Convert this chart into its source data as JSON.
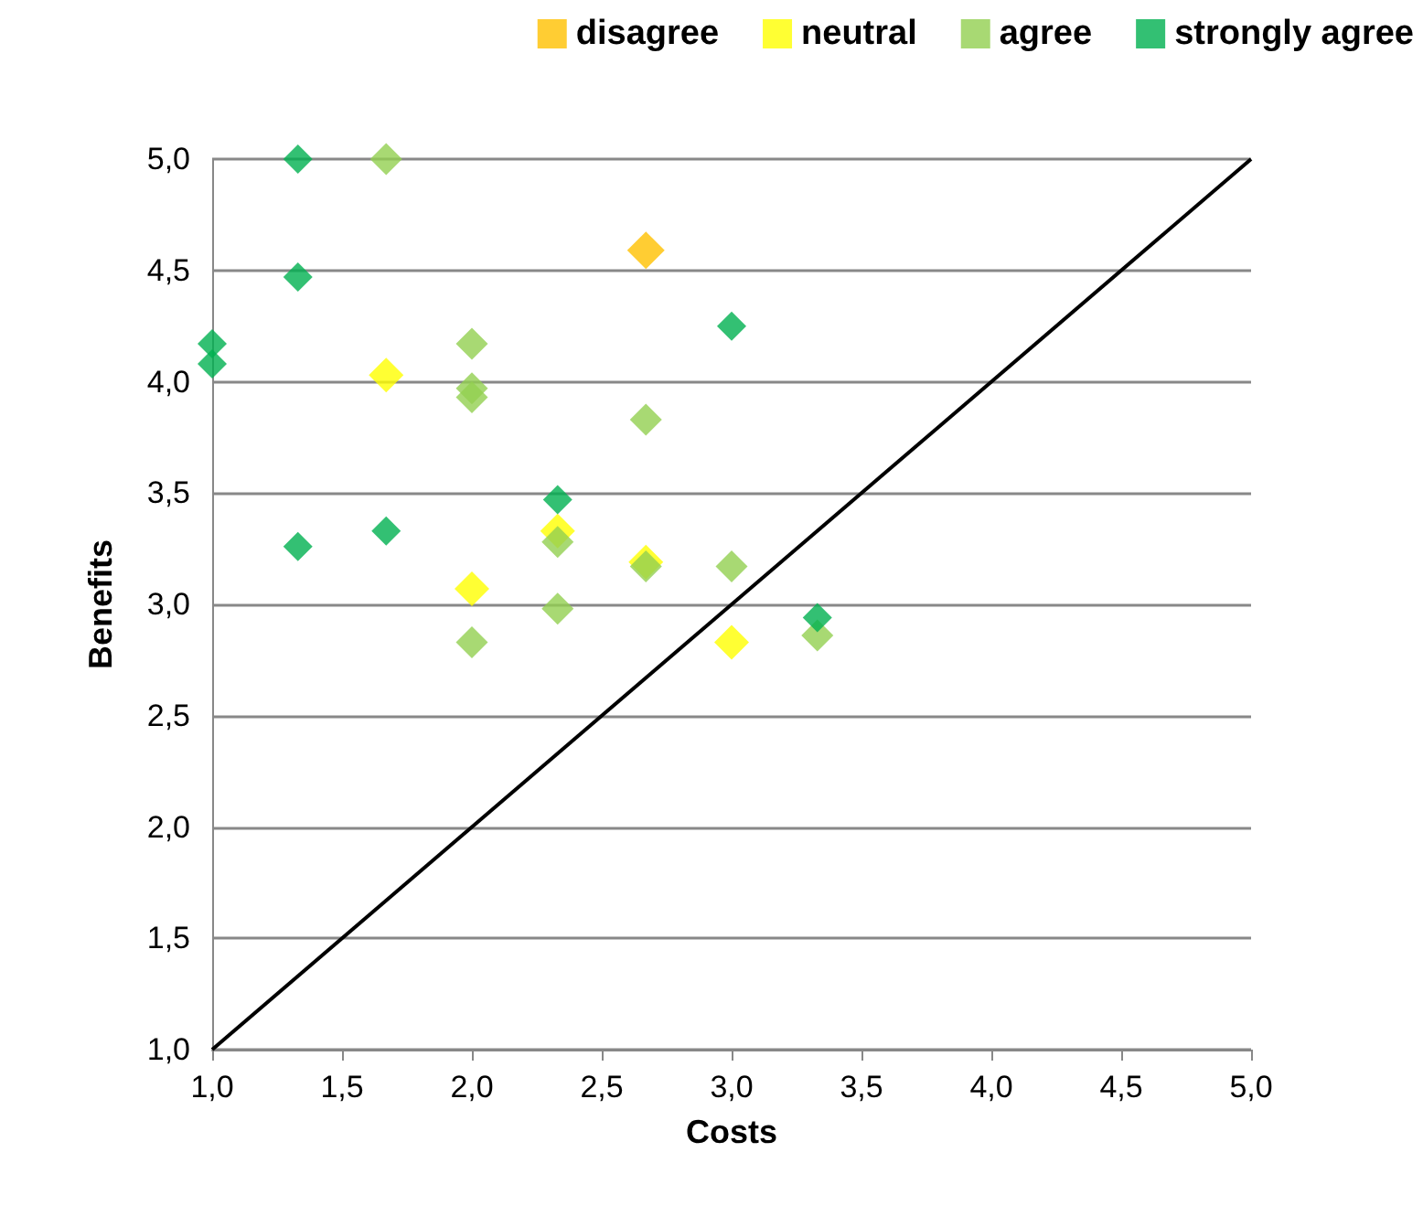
{
  "chart_data": {
    "type": "scatter",
    "xlabel": "Costs",
    "ylabel": "Benefits",
    "xlim": [
      1,
      5
    ],
    "ylim": [
      1,
      5
    ],
    "xticks": [
      {
        "value": 1,
        "label": "1,0"
      },
      {
        "value": 1.5,
        "label": "1,5"
      },
      {
        "value": 2,
        "label": "2,0"
      },
      {
        "value": 2.5,
        "label": "2,5"
      },
      {
        "value": 3,
        "label": "3,0"
      },
      {
        "value": 3.5,
        "label": "3,5"
      },
      {
        "value": 4,
        "label": "4,0"
      },
      {
        "value": 4.5,
        "label": "4,5"
      },
      {
        "value": 5,
        "label": "5,0"
      }
    ],
    "yticks": [
      {
        "value": 1,
        "label": "1,0"
      },
      {
        "value": 1.5,
        "label": "1,5"
      },
      {
        "value": 2,
        "label": "2,0"
      },
      {
        "value": 2.5,
        "label": "2,5"
      },
      {
        "value": 3,
        "label": "3,0"
      },
      {
        "value": 3.5,
        "label": "3,5"
      },
      {
        "value": 4,
        "label": "4,0"
      },
      {
        "value": 4.5,
        "label": "4,5"
      },
      {
        "value": 5,
        "label": "5,0"
      }
    ],
    "grid": "y",
    "legend": "top",
    "marker": "diamond",
    "series": [
      {
        "type": "line",
        "color": "#000000",
        "marker": "none",
        "x": [
          1,
          5
        ],
        "values": [
          1,
          5
        ]
      },
      {
        "name": "disagree",
        "color": "#ffc000",
        "x": [
          2.67
        ],
        "values": [
          4.59
        ]
      },
      {
        "name": "neutral",
        "color": "#ffff00",
        "x": [
          1.67,
          2,
          2.33,
          2.67,
          3
        ],
        "values": [
          4.03,
          3.07,
          3.33,
          3.19,
          2.83
        ]
      },
      {
        "name": "agree",
        "color": "#92d050",
        "x": [
          1.67,
          2,
          2,
          2,
          2,
          2.33,
          2.33,
          2.67,
          2.67,
          3,
          3.33
        ],
        "values": [
          5,
          4.17,
          3.97,
          3.93,
          2.83,
          3.28,
          2.98,
          3.83,
          3.17,
          3.17,
          2.86
        ]
      },
      {
        "name": "strongly agree",
        "color": "#00b050",
        "x": [
          1,
          1,
          1.33,
          1.33,
          1.33,
          1.67,
          2.33,
          3,
          3.33
        ],
        "values": [
          4.17,
          4.08,
          5,
          4.47,
          3.26,
          3.33,
          3.47,
          4.25,
          2.94
        ]
      }
    ]
  }
}
